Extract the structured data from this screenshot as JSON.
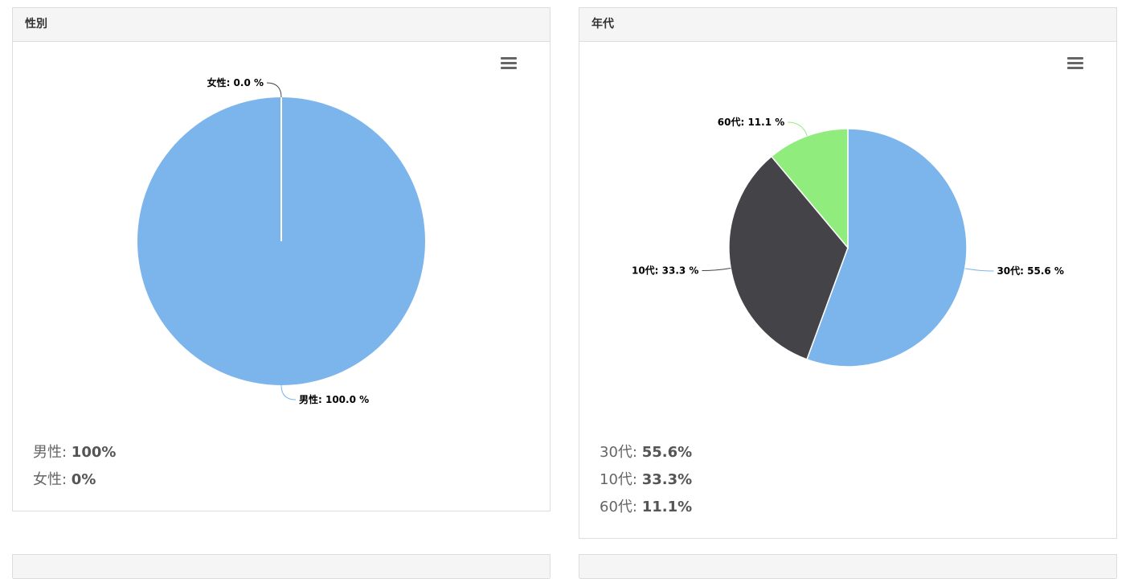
{
  "panels": [
    {
      "title": "性別",
      "menu_icon": "hamburger-menu-icon",
      "stats": [
        {
          "label": "男性: ",
          "value": "100%"
        },
        {
          "label": "女性: ",
          "value": "0%"
        }
      ]
    },
    {
      "title": "年代",
      "menu_icon": "hamburger-menu-icon",
      "stats": [
        {
          "label": "30代: ",
          "value": "55.6%"
        },
        {
          "label": "10代: ",
          "value": "33.3%"
        },
        {
          "label": "60代: ",
          "value": "11.1%"
        }
      ]
    }
  ],
  "chart_data": [
    {
      "type": "pie",
      "title": "",
      "slices": [
        {
          "name": "男性",
          "value": 100.0,
          "color": "#7cb5ec",
          "label": "男性: 100.0 %"
        },
        {
          "name": "女性",
          "value": 0.0,
          "color": "#434348",
          "label": "女性: 0.0 %"
        }
      ]
    },
    {
      "type": "pie",
      "title": "",
      "slices": [
        {
          "name": "30代",
          "value": 55.6,
          "color": "#7cb5ec",
          "label": "30代: 55.6 %"
        },
        {
          "name": "10代",
          "value": 33.3,
          "color": "#434348",
          "label": "10代: 33.3 %"
        },
        {
          "name": "60代",
          "value": 11.1,
          "color": "#90ed7d",
          "label": "60代: 11.1 %"
        }
      ]
    }
  ]
}
